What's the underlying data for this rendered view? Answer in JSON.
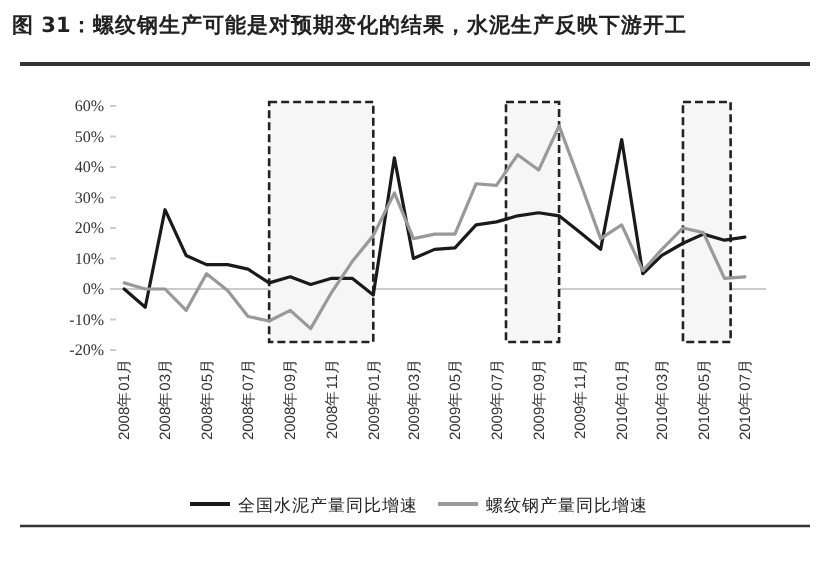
{
  "chart_data": {
    "type": "line",
    "title": "图 31：螺纹钢生产可能是对预期变化的结果，水泥生产反映下游开工",
    "x": [
      "2008-01",
      "2008-02",
      "2008-03",
      "2008-04",
      "2008-05",
      "2008-06",
      "2008-07",
      "2008-08",
      "2008-09",
      "2008-10",
      "2008-11",
      "2008-12",
      "2009-01",
      "2009-02",
      "2009-03",
      "2009-04",
      "2009-05",
      "2009-06",
      "2009-07",
      "2009-08",
      "2009-09",
      "2009-10",
      "2009-11",
      "2009-12",
      "2010-01",
      "2010-02",
      "2010-03",
      "2010-04",
      "2010-05",
      "2010-06",
      "2010-07"
    ],
    "series": [
      {
        "name": "全国水泥产量同比增速",
        "color": "#1a1a1a",
        "values": [
          0,
          -6,
          26,
          11,
          8,
          8,
          6.5,
          2,
          4,
          1.5,
          3.5,
          3.5,
          -2,
          43,
          10,
          13,
          13.5,
          21,
          22,
          24,
          25,
          24,
          18.5,
          13,
          49,
          5,
          11,
          15,
          18,
          16,
          17
        ]
      },
      {
        "name": "螺纹钢产量同比增速",
        "color": "#999999",
        "values": [
          2,
          0,
          0,
          -7,
          5,
          -0.5,
          -9,
          -10.5,
          -7,
          -13,
          -1,
          9,
          17.5,
          31.5,
          16.5,
          18,
          18,
          34.5,
          34,
          44,
          39,
          53.5,
          35,
          16.5,
          21,
          6,
          13,
          20,
          18.5,
          3.5,
          4
        ]
      }
    ],
    "xlim": [
      "2007-12-20",
      "2010-08"
    ],
    "xticks": [
      {
        "value": "2008-01",
        "label": "2008年01月"
      },
      {
        "value": "2008-03",
        "label": "2008年03月"
      },
      {
        "value": "2008-05",
        "label": "2008年05月"
      },
      {
        "value": "2008-07",
        "label": "2008年07月"
      },
      {
        "value": "2008-09",
        "label": "2008年09月"
      },
      {
        "value": "2008-11",
        "label": "2008年11月"
      },
      {
        "value": "2009-01",
        "label": "2009年01月"
      },
      {
        "value": "2009-03",
        "label": "2009年03月"
      },
      {
        "value": "2009-05",
        "label": "2009年05月"
      },
      {
        "value": "2009-07",
        "label": "2009年07月"
      },
      {
        "value": "2009-09",
        "label": "2009年09月"
      },
      {
        "value": "2009-11",
        "label": "2009年11月"
      },
      {
        "value": "2010-01",
        "label": "2010年01月"
      },
      {
        "value": "2010-03",
        "label": "2010年03月"
      },
      {
        "value": "2010-05",
        "label": "2010年05月"
      },
      {
        "value": "2010-07",
        "label": "2010年07月"
      }
    ],
    "ylim": [
      -20,
      60
    ],
    "yticks": [
      {
        "value": -20,
        "label": "-20%"
      },
      {
        "value": -10,
        "label": "-10%"
      },
      {
        "value": 0,
        "label": "0%"
      },
      {
        "value": 10,
        "label": "10%"
      },
      {
        "value": 20,
        "label": "20%"
      },
      {
        "value": 30,
        "label": "30%"
      },
      {
        "value": 40,
        "label": "40%"
      },
      {
        "value": 50,
        "label": "50%"
      },
      {
        "value": 60,
        "label": "60%"
      }
    ],
    "ref_lines": [
      {
        "axis": "y",
        "value": 0,
        "color": "#cccccc"
      }
    ],
    "bands": [
      {
        "axis": "x",
        "from": "2008-08",
        "to": "2009-01"
      },
      {
        "axis": "x",
        "from": "2009-07-15",
        "to": "2009-10"
      },
      {
        "axis": "x",
        "from": "2010-04",
        "to": "2010-06-10"
      }
    ],
    "legend": "bottom",
    "grid": false,
    "marker": "none",
    "line_style": "solid"
  }
}
